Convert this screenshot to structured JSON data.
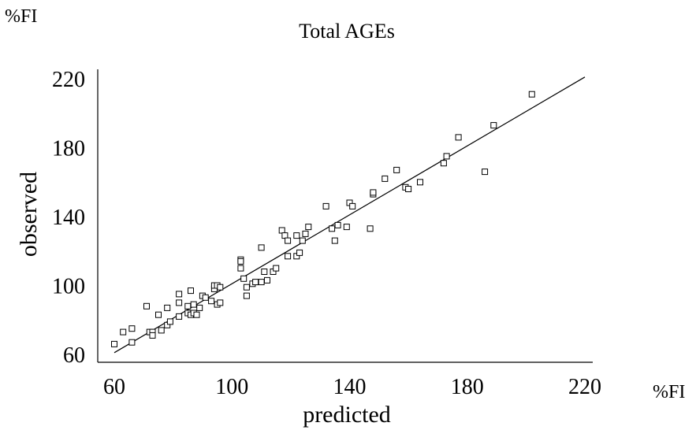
{
  "chart_data": {
    "type": "scatter",
    "title": "Total AGEs",
    "xlabel": "predicted",
    "ylabel": "observed",
    "x_unit": "%FI",
    "y_unit": "%FI",
    "xlim": [
      55,
      220
    ],
    "ylim": [
      60,
      220
    ],
    "xticks": [
      "60",
      "100",
      "140",
      "180",
      "220"
    ],
    "yticks": [
      "60",
      "100",
      "140",
      "180",
      "220"
    ],
    "grid": false,
    "fit_line": {
      "x": [
        60,
        220
      ],
      "y": [
        61,
        221
      ]
    },
    "points": [
      [
        60,
        66
      ],
      [
        63,
        73
      ],
      [
        66,
        75
      ],
      [
        66,
        67
      ],
      [
        71,
        88
      ],
      [
        72,
        73
      ],
      [
        73,
        73
      ],
      [
        73,
        71
      ],
      [
        75,
        83
      ],
      [
        76,
        74
      ],
      [
        78,
        87
      ],
      [
        78,
        77
      ],
      [
        79,
        79
      ],
      [
        82,
        90
      ],
      [
        82,
        82
      ],
      [
        82,
        95
      ],
      [
        85,
        84
      ],
      [
        85,
        88
      ],
      [
        86,
        83
      ],
      [
        86,
        97
      ],
      [
        87,
        89
      ],
      [
        87,
        84
      ],
      [
        88,
        83
      ],
      [
        89,
        87
      ],
      [
        90,
        94
      ],
      [
        91,
        93
      ],
      [
        93,
        91
      ],
      [
        94,
        98
      ],
      [
        94,
        100
      ],
      [
        95,
        100
      ],
      [
        95,
        89
      ],
      [
        96,
        99
      ],
      [
        96,
        90
      ],
      [
        103,
        115
      ],
      [
        103,
        114
      ],
      [
        103,
        110
      ],
      [
        104,
        104
      ],
      [
        105,
        94
      ],
      [
        105,
        99
      ],
      [
        107,
        101
      ],
      [
        108,
        102
      ],
      [
        110,
        102
      ],
      [
        110,
        122
      ],
      [
        111,
        108
      ],
      [
        112,
        103
      ],
      [
        114,
        108
      ],
      [
        115,
        110
      ],
      [
        117,
        132
      ],
      [
        118,
        129
      ],
      [
        119,
        117
      ],
      [
        119,
        126
      ],
      [
        122,
        117
      ],
      [
        122,
        129
      ],
      [
        123,
        119
      ],
      [
        124,
        126
      ],
      [
        125,
        130
      ],
      [
        126,
        134
      ],
      [
        132,
        146
      ],
      [
        134,
        133
      ],
      [
        135,
        126
      ],
      [
        136,
        135
      ],
      [
        139,
        134
      ],
      [
        140,
        148
      ],
      [
        141,
        146
      ],
      [
        147,
        133
      ],
      [
        148,
        153
      ],
      [
        148,
        154
      ],
      [
        152,
        162
      ],
      [
        156,
        167
      ],
      [
        159,
        157
      ],
      [
        160,
        156
      ],
      [
        164,
        160
      ],
      [
        172,
        171
      ],
      [
        173,
        175
      ],
      [
        177,
        186
      ],
      [
        186,
        166
      ],
      [
        189,
        193
      ],
      [
        202,
        211
      ]
    ]
  }
}
